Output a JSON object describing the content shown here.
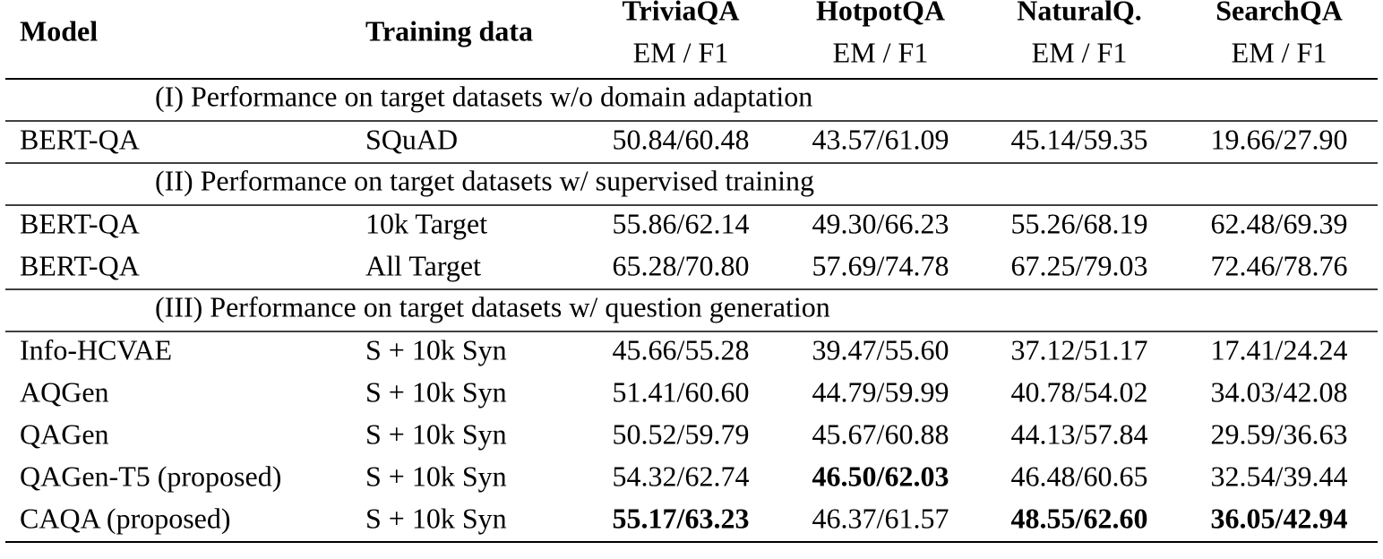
{
  "header": {
    "model": "Model",
    "training": "Training data",
    "datasets": [
      {
        "name": "TriviaQA",
        "metric": "EM / F1"
      },
      {
        "name": "HotpotQA",
        "metric": "EM / F1"
      },
      {
        "name": "NaturalQ.",
        "metric": "EM / F1"
      },
      {
        "name": "SearchQA",
        "metric": "EM / F1"
      }
    ]
  },
  "sections": [
    {
      "title": "(I) Performance on target datasets w/o domain adaptation",
      "rows": [
        {
          "model": "BERT-QA",
          "training": "SQuAD",
          "scores": [
            "50.84/60.48",
            "43.57/61.09",
            "45.14/59.35",
            "19.66/27.90"
          ]
        }
      ]
    },
    {
      "title": "(II) Performance on target datasets w/ supervised training",
      "rows": [
        {
          "model": "BERT-QA",
          "training": "10k Target",
          "scores": [
            "55.86/62.14",
            "49.30/66.23",
            "55.26/68.19",
            "62.48/69.39"
          ]
        },
        {
          "model": "BERT-QA",
          "training": "All Target",
          "scores": [
            "65.28/70.80",
            "57.69/74.78",
            "67.25/79.03",
            "72.46/78.76"
          ]
        }
      ]
    },
    {
      "title": "(III) Performance on target datasets w/ question generation",
      "rows": [
        {
          "model": "Info-HCVAE",
          "training": "S + 10k Syn",
          "scores": [
            "45.66/55.28",
            "39.47/55.60",
            "37.12/51.17",
            "17.41/24.24"
          ]
        },
        {
          "model": "AQGen",
          "training": "S + 10k Syn",
          "scores": [
            "51.41/60.60",
            "44.79/59.99",
            "40.78/54.02",
            "34.03/42.08"
          ]
        },
        {
          "model": "QAGen",
          "training": "S + 10k Syn",
          "scores": [
            "50.52/59.79",
            "45.67/60.88",
            "44.13/57.84",
            "29.59/36.63"
          ]
        },
        {
          "model": "QAGen-T5 (proposed)",
          "training": "S + 10k Syn",
          "scores": [
            "54.32/62.74",
            "46.50/62.03",
            "46.48/60.65",
            "32.54/39.44"
          ],
          "bold": [
            1
          ]
        },
        {
          "model": "CAQA (proposed)",
          "training": "S + 10k Syn",
          "scores": [
            "55.17/63.23",
            "46.37/61.57",
            "48.55/62.60",
            "36.05/42.94"
          ],
          "bold": [
            0,
            2,
            3
          ]
        }
      ]
    }
  ]
}
